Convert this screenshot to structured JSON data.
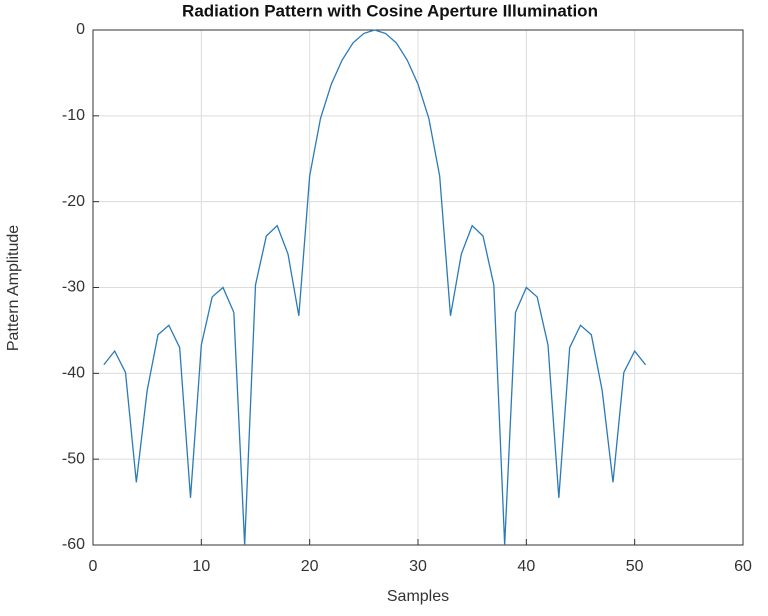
{
  "chart_data": {
    "type": "line",
    "title": "Radiation Pattern with Cosine Aperture Illumination",
    "x_label": "Samples",
    "y_label": "Pattern Amplitude",
    "x": [
      1,
      2,
      3,
      4,
      5,
      6,
      7,
      8,
      9,
      10,
      11,
      12,
      13,
      14,
      15,
      16,
      17,
      18,
      19,
      20,
      21,
      22,
      23,
      24,
      25,
      26,
      27,
      28,
      29,
      30,
      31,
      32,
      33,
      34,
      35,
      36,
      37,
      38,
      39,
      40,
      41,
      42,
      43,
      44,
      45,
      46,
      47,
      48,
      49,
      50,
      51
    ],
    "series": [
      {
        "name": "Pattern",
        "color": "#2a7ab8",
        "values": [
          -39,
          -37.4,
          -39.9,
          -52.7,
          -42,
          -35.5,
          -34.4,
          -37,
          -54.5,
          -36.7,
          -31.1,
          -30,
          -32.9,
          -60,
          -29.7,
          -24,
          -22.8,
          -26.1,
          -33.3,
          -17,
          -10.3,
          -6.3,
          -3.5,
          -1.5,
          -0.4,
          0,
          -0.4,
          -1.5,
          -3.5,
          -6.3,
          -10.3,
          -17,
          -33.3,
          -26.1,
          -22.8,
          -24,
          -29.7,
          -60,
          -32.9,
          -30,
          -31.1,
          -36.7,
          -54.5,
          -37,
          -34.4,
          -35.5,
          -42,
          -52.7,
          -39.9,
          -37.4,
          -39
        ]
      }
    ],
    "xlim": [
      0,
      60
    ],
    "ylim": [
      -60,
      0
    ],
    "xticks": [
      0,
      10,
      20,
      30,
      40,
      50,
      60
    ],
    "yticks": [
      -60,
      -50,
      -40,
      -30,
      -20,
      -10,
      0
    ],
    "grid": true
  }
}
